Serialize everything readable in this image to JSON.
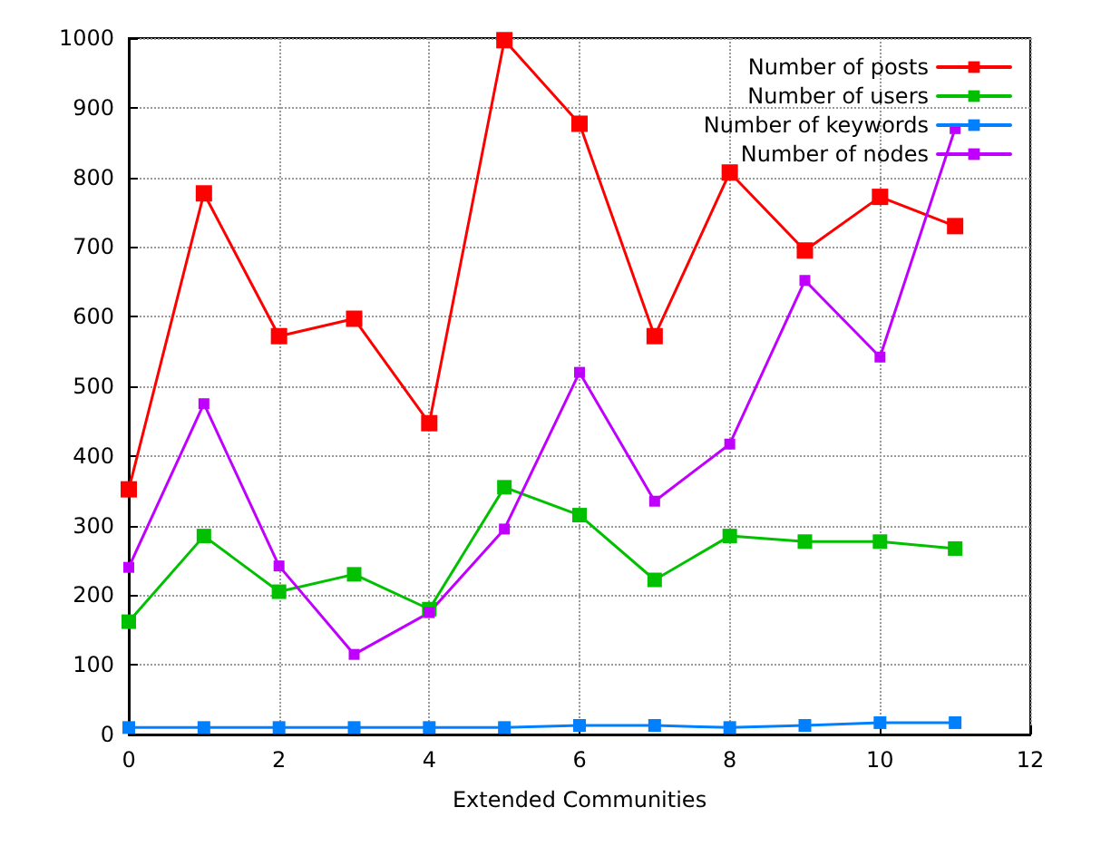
{
  "chart_data": {
    "type": "line",
    "xlabel": "Extended Communities",
    "x": [
      0,
      1,
      2,
      3,
      4,
      5,
      6,
      7,
      8,
      9,
      10,
      11
    ],
    "series": [
      {
        "name": "Number of posts",
        "color": "#ff0000",
        "values": [
          352,
          777,
          572,
          597,
          447,
          997,
          877,
          572,
          807,
          695,
          772,
          730
        ]
      },
      {
        "name": "Number of users",
        "color": "#00c000",
        "values": [
          162,
          285,
          205,
          230,
          180,
          355,
          315,
          222,
          285,
          277,
          277,
          267
        ]
      },
      {
        "name": "Number of keywords",
        "color": "#0080ff",
        "values": [
          10,
          10,
          10,
          10,
          10,
          10,
          13,
          13,
          10,
          13,
          17,
          17
        ]
      },
      {
        "name": "Number of nodes",
        "color": "#c000ff",
        "values": [
          240,
          475,
          242,
          115,
          175,
          295,
          520,
          335,
          417,
          652,
          542,
          870
        ]
      }
    ],
    "xlim": [
      0,
      12
    ],
    "xticks": [
      0,
      2,
      4,
      6,
      8,
      10,
      12
    ],
    "ylim": [
      0,
      1000
    ],
    "yticks": [
      0,
      100,
      200,
      300,
      400,
      500,
      600,
      700,
      800,
      900,
      1000
    ],
    "grid": true,
    "legend": "top right",
    "marker": "square",
    "line_style": "solid"
  }
}
